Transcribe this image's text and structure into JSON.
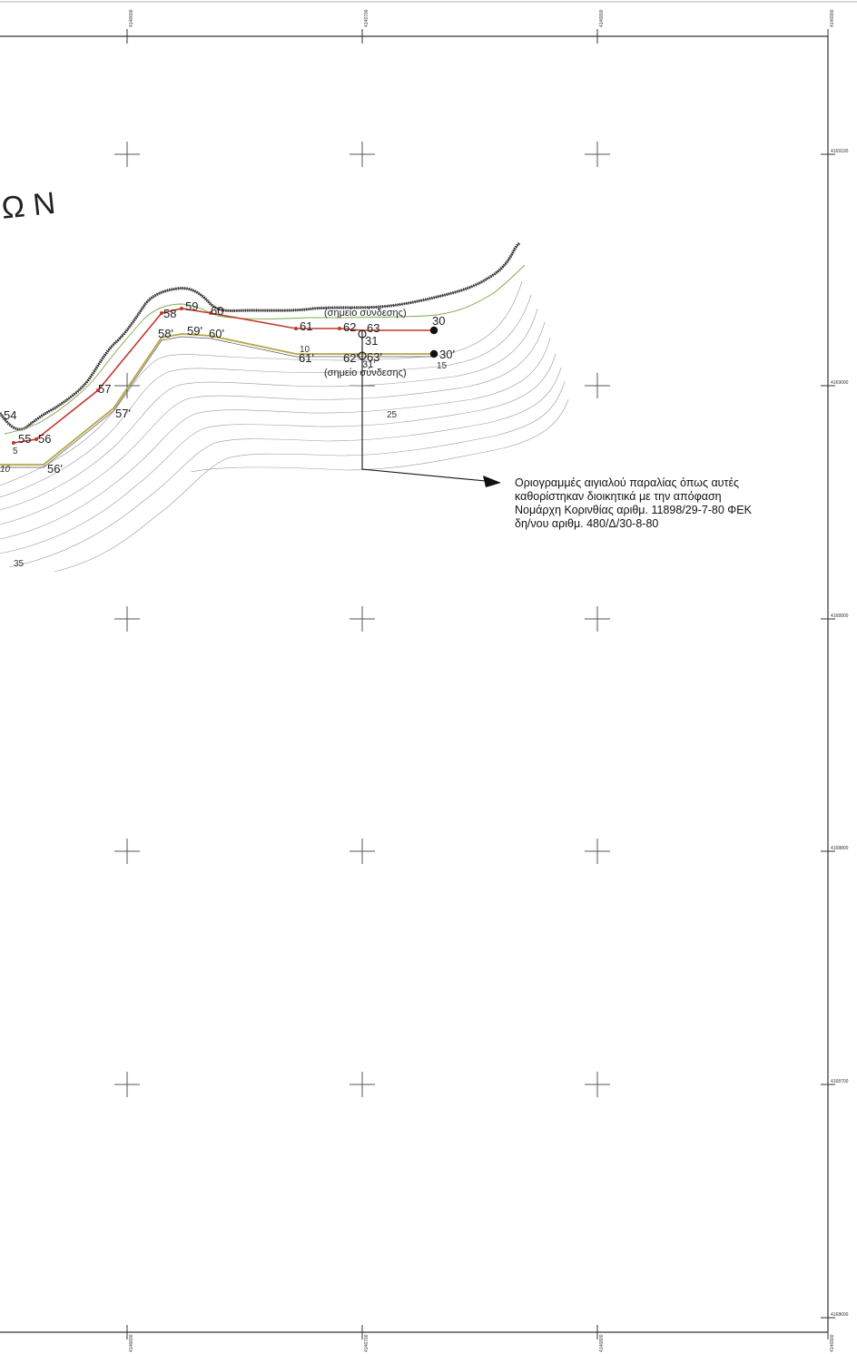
{
  "frame": {
    "top_coords": [
      "4146600",
      "4146700",
      "4146800",
      "4146900"
    ],
    "bottom_coords": [
      "4146600",
      "4146700",
      "4146800",
      "4146900"
    ],
    "right_coords": [
      "4169100",
      "4169000",
      "4168900",
      "4168800",
      "4168700",
      "4168600"
    ]
  },
  "map_label": "Ω N",
  "boundary_points_upper": [
    "54",
    "55",
    "56",
    "57",
    "58",
    "59",
    "60",
    "61",
    "62",
    "63",
    "31",
    "30"
  ],
  "boundary_points_lower": [
    "56'",
    "57'",
    "58'",
    "59'",
    "60'",
    "61'",
    "62'",
    "63'",
    "31'",
    "30'"
  ],
  "contour_labels": [
    "10",
    "15",
    "25",
    "35",
    "5",
    "10"
  ],
  "connection_point_upper": "(σημείο σύνδεσης)",
  "connection_point_lower": "(σημείο σύνδεσης)",
  "legend_note": {
    "line1": "Οριογραμμές αιγιαλού παραλίας όπως αυτές",
    "line2": "καθορίστηκαν διοικητικά με την απόφαση",
    "line3": "Νομάρχη Κορινθίας αριθμ. 11898/29-7-80 ΦΕΚ",
    "line4": "δη/νου  αριθμ. 480/Δ/30-8-80"
  },
  "colors": {
    "upper_boundary": "#c0392b",
    "lower_boundary": "#b5a642",
    "shoreline": "#222222",
    "contours": "#9a9a9a",
    "frame": "#333333"
  }
}
